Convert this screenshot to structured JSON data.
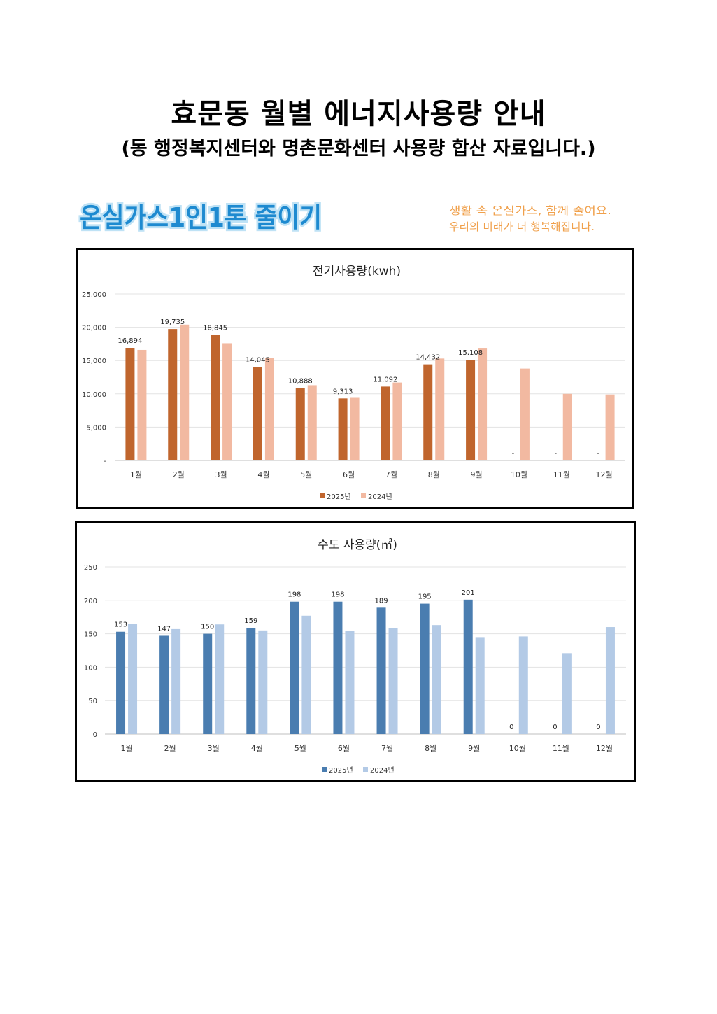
{
  "page": {
    "title": "효문동 월별 에너지사용량 안내",
    "subtitle": "(동 행정복지센터와 명촌문화센터 사용량 합산 자료입니다.)"
  },
  "banner": {
    "campaign_text": "온실가스1인1톤 줄이기",
    "slogan_line1": "생활 속 온실가스, 함께 줄여요.",
    "slogan_line2": "우리의 미래가 더 행복해집니다."
  },
  "colors": {
    "electric_2025": "#C0652D",
    "electric_2024": "#F2B9A1",
    "water_2025": "#4A7DB0",
    "water_2024": "#B3CAE6",
    "campaign_blue": "#1E8AD0",
    "slogan_orange": "#F0A04B"
  },
  "chart_data": [
    {
      "type": "bar",
      "title": "전기사용량(kwh)",
      "categories": [
        "1월",
        "2월",
        "3월",
        "4월",
        "5월",
        "6월",
        "7월",
        "8월",
        "9월",
        "10월",
        "11월",
        "12월"
      ],
      "series": [
        {
          "name": "2025년",
          "values": [
            16894,
            19735,
            18845,
            14045,
            10888,
            9313,
            11092,
            14432,
            15108,
            0,
            0,
            0
          ]
        },
        {
          "name": "2024년",
          "values": [
            16600,
            20400,
            17600,
            15400,
            11300,
            9400,
            11700,
            15300,
            16800,
            13800,
            10000,
            9900
          ]
        }
      ],
      "data_labels": [
        "16,894",
        "19,735",
        "18,845",
        "14,045",
        "10,888",
        "9,313",
        "11,092",
        "14,432",
        "15,108",
        "-",
        "-",
        "-"
      ],
      "yticks": [
        "-",
        "5,000",
        "10,000",
        "15,000",
        "20,000",
        "25,000"
      ],
      "ylim": [
        0,
        25000
      ],
      "grid": true,
      "legend": "bottom"
    },
    {
      "type": "bar",
      "title": "수도 사용량(㎥)",
      "categories": [
        "1월",
        "2월",
        "3월",
        "4월",
        "5월",
        "6월",
        "7월",
        "8월",
        "9월",
        "10월",
        "11월",
        "12월"
      ],
      "series": [
        {
          "name": "2025년",
          "values": [
            153,
            147,
            150,
            159,
            198,
            198,
            189,
            195,
            201,
            0,
            0,
            0
          ]
        },
        {
          "name": "2024년",
          "values": [
            165,
            157,
            164,
            155,
            177,
            154,
            158,
            163,
            145,
            146,
            121,
            160
          ]
        }
      ],
      "data_labels": [
        "153",
        "147",
        "150",
        "159",
        "198",
        "198",
        "189",
        "195",
        "201",
        "0",
        "0",
        "0"
      ],
      "yticks": [
        "0",
        "50",
        "100",
        "150",
        "200",
        "250"
      ],
      "ylim": [
        0,
        250
      ],
      "grid": true,
      "legend": "bottom"
    }
  ]
}
